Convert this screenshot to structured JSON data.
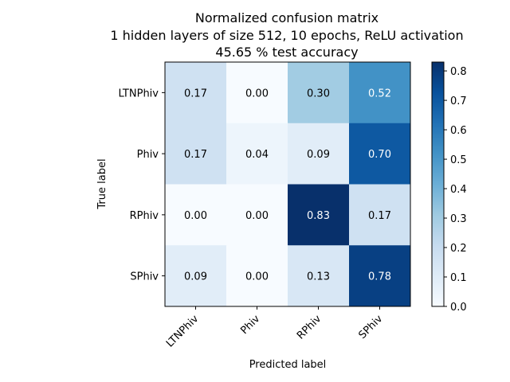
{
  "chart_data": {
    "type": "heatmap",
    "title_lines": [
      "Normalized confusion matrix",
      "1 hidden layers of size 512, 10 epochs, ReLU activation",
      "45.65 % test accuracy"
    ],
    "xlabel": "Predicted label",
    "ylabel": "True label",
    "x_categories": [
      "LTNPhiv",
      "Phiv",
      "RPhiv",
      "SPhiv"
    ],
    "y_categories": [
      "LTNPhiv",
      "Phiv",
      "RPhiv",
      "SPhiv"
    ],
    "values": [
      [
        0.17,
        0.0,
        0.3,
        0.52
      ],
      [
        0.17,
        0.04,
        0.09,
        0.7
      ],
      [
        0.0,
        0.0,
        0.83,
        0.17
      ],
      [
        0.09,
        0.0,
        0.13,
        0.78
      ]
    ],
    "colormap": "Blues",
    "colorbar": {
      "min": 0.0,
      "max": 0.83,
      "ticks": [
        0.0,
        0.1,
        0.2,
        0.3,
        0.4,
        0.5,
        0.6,
        0.7,
        0.8
      ],
      "tick_labels": [
        "0.0",
        "0.1",
        "0.2",
        "0.3",
        "0.4",
        "0.5",
        "0.6",
        "0.7",
        "0.8"
      ]
    },
    "grid": false
  }
}
